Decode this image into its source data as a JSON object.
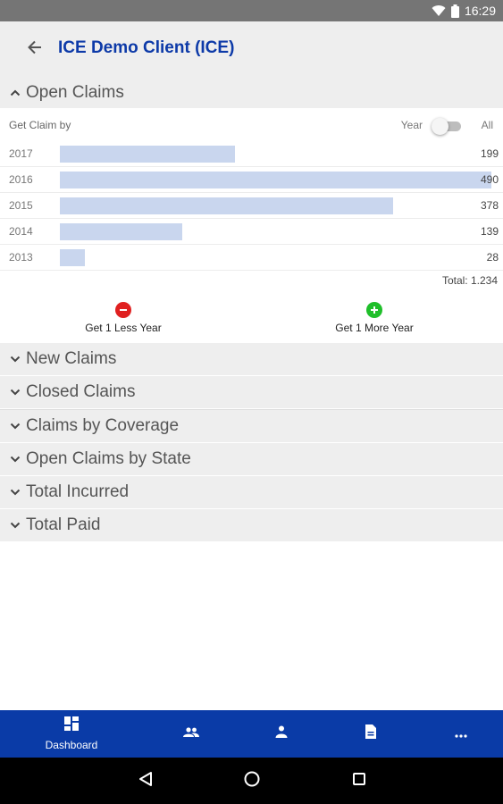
{
  "status_bar": {
    "time": "16:29",
    "icons": [
      "wifi-icon",
      "battery-icon"
    ]
  },
  "app_bar": {
    "title": "ICE Demo Client (ICE)",
    "back_icon": "arrow-left-icon"
  },
  "open_claims": {
    "title": "Open Claims",
    "expanded": true,
    "get_claim_by_label": "Get Claim by",
    "toggle": {
      "left_label": "Year",
      "right_label": "All",
      "state": "Year"
    },
    "rows": [
      {
        "year": "2017",
        "value": 199
      },
      {
        "year": "2016",
        "value": 490
      },
      {
        "year": "2015",
        "value": 378
      },
      {
        "year": "2014",
        "value": 139
      },
      {
        "year": "2013",
        "value": 28
      }
    ],
    "total_label": "Total: 1.234",
    "less_year_label": "Get 1 Less Year",
    "more_year_label": "Get 1 More Year"
  },
  "chart_data": {
    "type": "bar",
    "categories": [
      "2017",
      "2016",
      "2015",
      "2014",
      "2013"
    ],
    "values": [
      199,
      490,
      378,
      139,
      28
    ],
    "title": "",
    "xlabel": "",
    "ylabel": "",
    "xlim": [
      0,
      490
    ]
  },
  "sections": [
    {
      "title": "New Claims",
      "expanded": false
    },
    {
      "title": "Closed Claims",
      "expanded": false
    },
    {
      "title": "Claims by Coverage",
      "expanded": false
    },
    {
      "title": "Open Claims by State",
      "expanded": false
    },
    {
      "title": "Total Incurred",
      "expanded": false
    },
    {
      "title": "Total Paid",
      "expanded": false
    }
  ],
  "bottom_nav": {
    "items": [
      {
        "label": "Dashboard",
        "icon": "dashboard-icon",
        "active": true
      },
      {
        "label": "",
        "icon": "people-icon"
      },
      {
        "label": "",
        "icon": "person-icon"
      },
      {
        "label": "",
        "icon": "document-icon"
      },
      {
        "label": "",
        "icon": "more-icon"
      }
    ]
  },
  "colors": {
    "accent": "#0a3ba7",
    "title": "#0d3aa8",
    "bar": "#c9d6ee",
    "section_bg": "#eeeeee",
    "minus": "#e02020",
    "plus": "#1fbf2a"
  }
}
